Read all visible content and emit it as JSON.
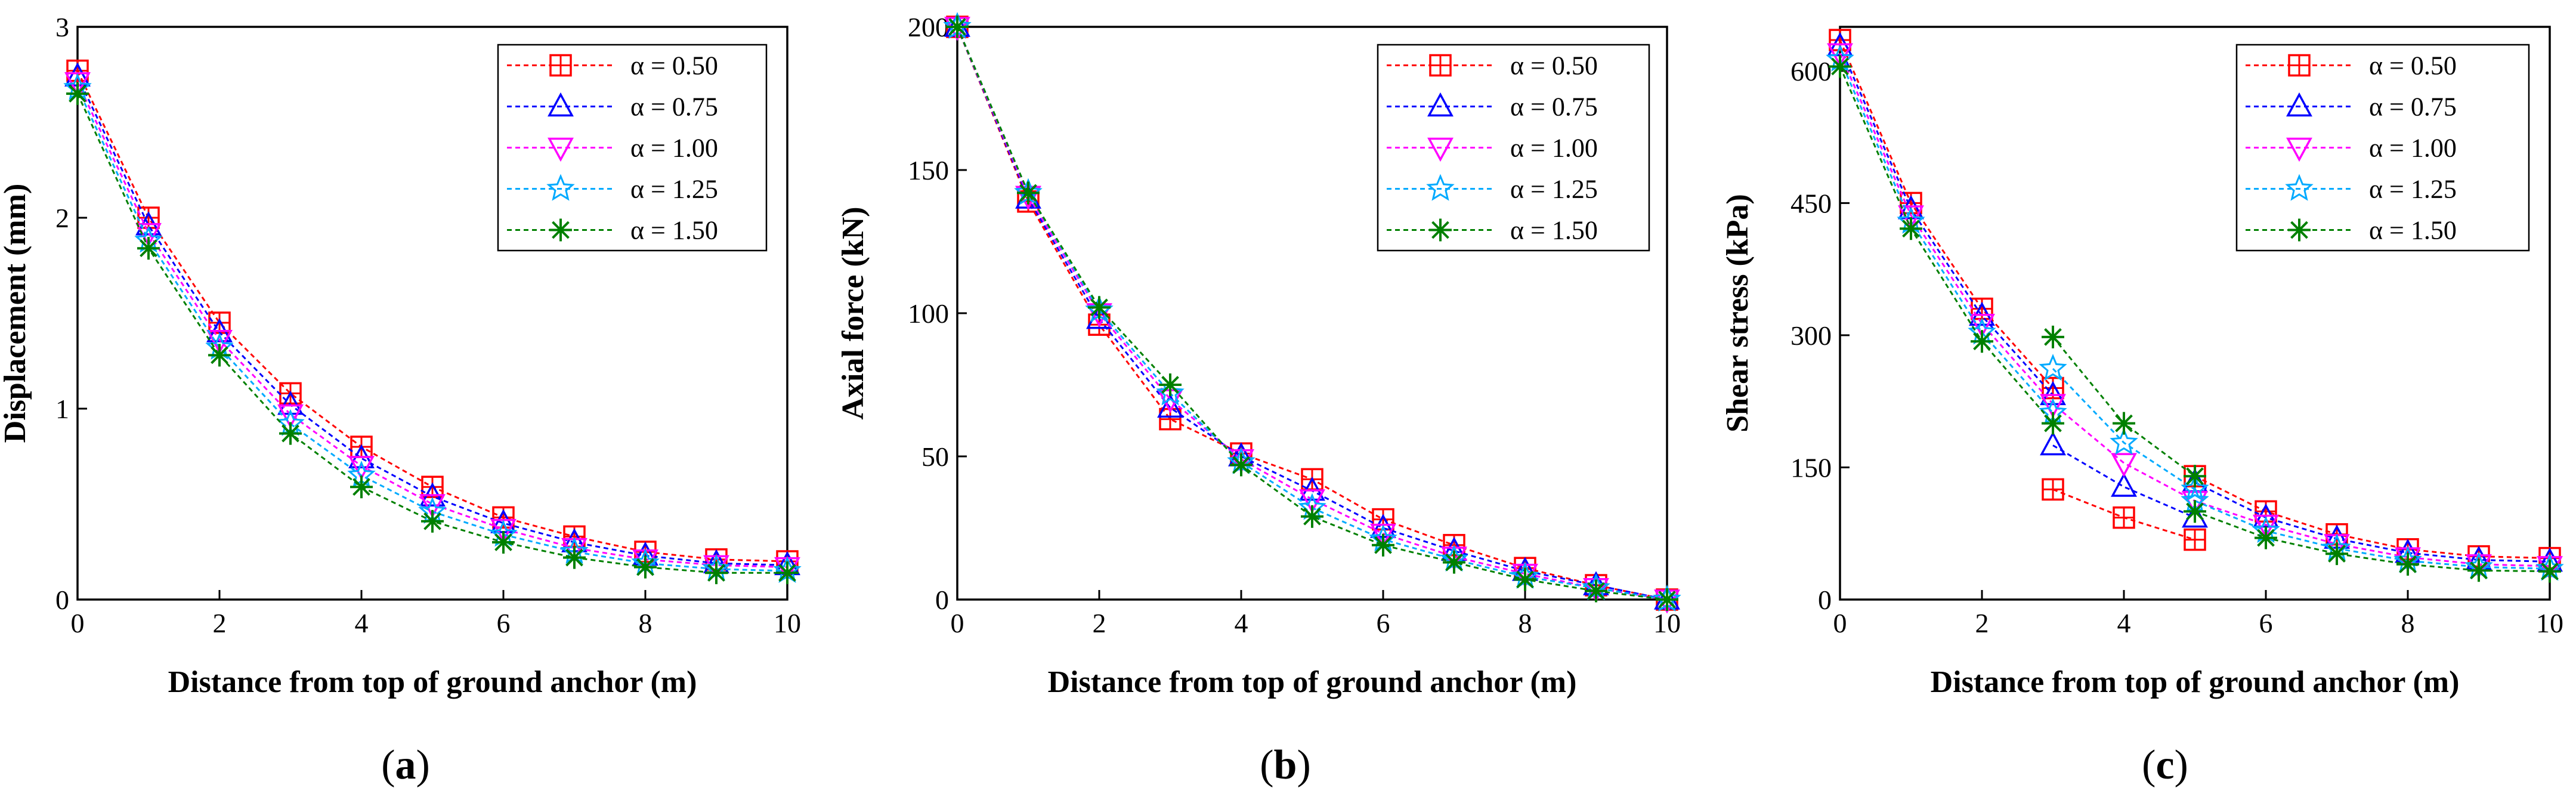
{
  "chart_data": [
    {
      "type": "line",
      "panel": "a",
      "caption_letter": "a",
      "xlabel": "Distance from top of ground anchor (m)",
      "ylabel": "Displacement (mm)",
      "xlim": [
        0,
        10
      ],
      "ylim": [
        0,
        3
      ],
      "xticks": [
        0,
        2,
        4,
        6,
        8,
        10
      ],
      "yticks": [
        0,
        1,
        2,
        3
      ],
      "x": [
        0,
        1,
        2,
        3,
        4,
        5,
        6,
        7,
        8,
        9,
        10
      ],
      "legend_position": "top-right",
      "series": [
        {
          "name": "α = 0.50",
          "color": "#ff0000",
          "marker": "square-plus",
          "segments": [
            [
              [
                0,
                2.77
              ],
              [
                1,
                2.0
              ],
              [
                2,
                1.45
              ],
              [
                3,
                1.08
              ],
              [
                4,
                0.8
              ],
              [
                5,
                0.59
              ],
              [
                6,
                0.43
              ],
              [
                7,
                0.33
              ],
              [
                8,
                0.25
              ],
              [
                9,
                0.21
              ],
              [
                10,
                0.2
              ]
            ]
          ]
        },
        {
          "name": "α = 0.75",
          "color": "#0000ff",
          "marker": "triangle-up",
          "segments": [
            [
              [
                0,
                2.74
              ],
              [
                1,
                1.96
              ],
              [
                2,
                1.4
              ],
              [
                3,
                1.02
              ],
              [
                4,
                0.74
              ],
              [
                5,
                0.54
              ],
              [
                6,
                0.4
              ],
              [
                7,
                0.3
              ],
              [
                8,
                0.23
              ],
              [
                9,
                0.19
              ],
              [
                10,
                0.18
              ]
            ]
          ]
        },
        {
          "name": "α = 1.00",
          "color": "#ff00ff",
          "marker": "triangle-down",
          "segments": [
            [
              [
                0,
                2.71
              ],
              [
                1,
                1.92
              ],
              [
                2,
                1.36
              ],
              [
                3,
                0.97
              ],
              [
                4,
                0.7
              ],
              [
                5,
                0.5
              ],
              [
                6,
                0.37
              ],
              [
                7,
                0.27
              ],
              [
                8,
                0.21
              ],
              [
                9,
                0.18
              ],
              [
                10,
                0.17
              ]
            ]
          ]
        },
        {
          "name": "α = 1.25",
          "color": "#00aaff",
          "marker": "star",
          "segments": [
            [
              [
                0,
                2.68
              ],
              [
                1,
                1.88
              ],
              [
                2,
                1.32
              ],
              [
                3,
                0.92
              ],
              [
                4,
                0.65
              ],
              [
                5,
                0.46
              ],
              [
                6,
                0.34
              ],
              [
                7,
                0.25
              ],
              [
                8,
                0.19
              ],
              [
                9,
                0.16
              ],
              [
                10,
                0.15
              ]
            ]
          ]
        },
        {
          "name": "α = 1.50",
          "color": "#008000",
          "marker": "asterisk",
          "segments": [
            [
              [
                0,
                2.65
              ],
              [
                1,
                1.84
              ],
              [
                2,
                1.28
              ],
              [
                3,
                0.87
              ],
              [
                4,
                0.59
              ],
              [
                5,
                0.41
              ],
              [
                6,
                0.3
              ],
              [
                7,
                0.22
              ],
              [
                8,
                0.17
              ],
              [
                9,
                0.14
              ],
              [
                10,
                0.14
              ]
            ]
          ]
        }
      ]
    },
    {
      "type": "line",
      "panel": "b",
      "caption_letter": "b",
      "xlabel": "Distance from top of ground anchor (m)",
      "ylabel": "Axial force (kN)",
      "xlim": [
        0,
        10
      ],
      "ylim": [
        0,
        200
      ],
      "xticks": [
        0,
        2,
        4,
        6,
        8,
        10
      ],
      "yticks": [
        0,
        50,
        100,
        150,
        200
      ],
      "x": [
        0,
        1,
        2,
        3,
        4,
        5,
        6,
        7,
        8,
        9,
        10
      ],
      "legend_position": "top-right",
      "series": [
        {
          "name": "α = 0.50",
          "color": "#ff0000",
          "marker": "square-plus",
          "segments": [
            [
              [
                0,
                200
              ],
              [
                1,
                139
              ],
              [
                2,
                96
              ],
              [
                3,
                63
              ],
              [
                4,
                51
              ],
              [
                5,
                42
              ],
              [
                6,
                28
              ],
              [
                7,
                19
              ],
              [
                8,
                11
              ],
              [
                9,
                5
              ],
              [
                10,
                0
              ]
            ]
          ]
        },
        {
          "name": "α = 0.75",
          "color": "#0000ff",
          "marker": "triangle-up",
          "segments": [
            [
              [
                0,
                200
              ],
              [
                1,
                140
              ],
              [
                2,
                98
              ],
              [
                3,
                67
              ],
              [
                4,
                50
              ],
              [
                5,
                38
              ],
              [
                6,
                25
              ],
              [
                7,
                17
              ],
              [
                8,
                10
              ],
              [
                9,
                5
              ],
              [
                10,
                0
              ]
            ]
          ]
        },
        {
          "name": "α = 1.00",
          "color": "#ff00ff",
          "marker": "triangle-down",
          "segments": [
            [
              [
                0,
                200
              ],
              [
                1,
                141
              ],
              [
                2,
                100
              ],
              [
                3,
                70
              ],
              [
                4,
                49
              ],
              [
                5,
                35
              ],
              [
                6,
                23
              ],
              [
                7,
                15
              ],
              [
                8,
                9
              ],
              [
                9,
                4
              ],
              [
                10,
                0
              ]
            ]
          ]
        },
        {
          "name": "α = 1.25",
          "color": "#00aaff",
          "marker": "star",
          "segments": [
            [
              [
                0,
                200
              ],
              [
                1,
                142
              ],
              [
                2,
                101
              ],
              [
                3,
                72
              ],
              [
                4,
                48
              ],
              [
                5,
                32
              ],
              [
                6,
                21
              ],
              [
                7,
                14
              ],
              [
                8,
                8
              ],
              [
                9,
                4
              ],
              [
                10,
                0
              ]
            ]
          ]
        },
        {
          "name": "α = 1.50",
          "color": "#008000",
          "marker": "asterisk",
          "segments": [
            [
              [
                0,
                200
              ],
              [
                1,
                142
              ],
              [
                2,
                102
              ],
              [
                3,
                75
              ],
              [
                4,
                47
              ],
              [
                5,
                29
              ],
              [
                6,
                19
              ],
              [
                7,
                13
              ],
              [
                8,
                7
              ],
              [
                9,
                3
              ],
              [
                10,
                0
              ]
            ]
          ]
        }
      ]
    },
    {
      "type": "line",
      "panel": "c",
      "caption_letter": "c",
      "xlabel": "Distance from top of ground anchor (m)",
      "ylabel": "Shear stress (kPa)",
      "xlim": [
        0,
        10
      ],
      "ylim": [
        0,
        650
      ],
      "xticks": [
        0,
        2,
        4,
        6,
        8,
        10
      ],
      "yticks": [
        0,
        150,
        300,
        450,
        600
      ],
      "x": [
        0,
        1,
        2,
        3,
        4,
        5,
        6,
        7,
        8,
        9,
        10
      ],
      "legend_position": "top-right",
      "series": [
        {
          "name": "α = 0.50",
          "color": "#ff0000",
          "marker": "square-plus",
          "segments": [
            [
              [
                0,
                635
              ],
              [
                1,
                450
              ],
              [
                2,
                330
              ],
              [
                3,
                240
              ]
            ],
            [
              [
                3,
                125
              ],
              [
                4,
                93
              ],
              [
                5,
                68
              ]
            ],
            [
              [
                5,
                140
              ],
              [
                6,
                100
              ],
              [
                7,
                74
              ],
              [
                8,
                57
              ],
              [
                9,
                49
              ],
              [
                10,
                47
              ]
            ]
          ]
        },
        {
          "name": "α = 0.75",
          "color": "#0000ff",
          "marker": "triangle-up",
          "segments": [
            [
              [
                0,
                628
              ],
              [
                1,
                443
              ],
              [
                2,
                322
              ],
              [
                3,
                232
              ]
            ],
            [
              [
                3,
                175
              ],
              [
                4,
                128
              ],
              [
                5,
                93
              ]
            ],
            [
              [
                5,
                133
              ],
              [
                6,
                93
              ],
              [
                7,
                69
              ],
              [
                8,
                53
              ],
              [
                9,
                45
              ],
              [
                10,
                43
              ]
            ]
          ]
        },
        {
          "name": "α = 1.00",
          "color": "#ff00ff",
          "marker": "triangle-down",
          "segments": [
            [
              [
                0,
                620
              ],
              [
                1,
                436
              ],
              [
                2,
                313
              ],
              [
                3,
                222
              ],
              [
                4,
                155
              ],
              [
                5,
                112
              ],
              [
                6,
                85
              ],
              [
                7,
                63
              ],
              [
                8,
                48
              ],
              [
                9,
                40
              ],
              [
                10,
                38
              ]
            ]
          ]
        },
        {
          "name": "α = 1.25",
          "color": "#00aaff",
          "marker": "star",
          "segments": [
            [
              [
                0,
                613
              ],
              [
                1,
                429
              ],
              [
                2,
                303
              ],
              [
                3,
                212
              ]
            ],
            [
              [
                3,
                262
              ],
              [
                4,
                178
              ],
              [
                5,
                125
              ]
            ],
            [
              [
                5,
                112
              ],
              [
                6,
                78
              ],
              [
                7,
                58
              ],
              [
                8,
                44
              ],
              [
                9,
                37
              ],
              [
                10,
                35
              ]
            ]
          ]
        },
        {
          "name": "α = 1.50",
          "color": "#008000",
          "marker": "asterisk",
          "segments": [
            [
              [
                0,
                605
              ],
              [
                1,
                421
              ],
              [
                2,
                293
              ],
              [
                3,
                200
              ]
            ],
            [
              [
                3,
                298
              ],
              [
                4,
                200
              ],
              [
                5,
                140
              ]
            ],
            [
              [
                5,
                100
              ],
              [
                6,
                70
              ],
              [
                7,
                52
              ],
              [
                8,
                40
              ],
              [
                9,
                33
              ],
              [
                10,
                32
              ]
            ]
          ]
        }
      ]
    }
  ]
}
